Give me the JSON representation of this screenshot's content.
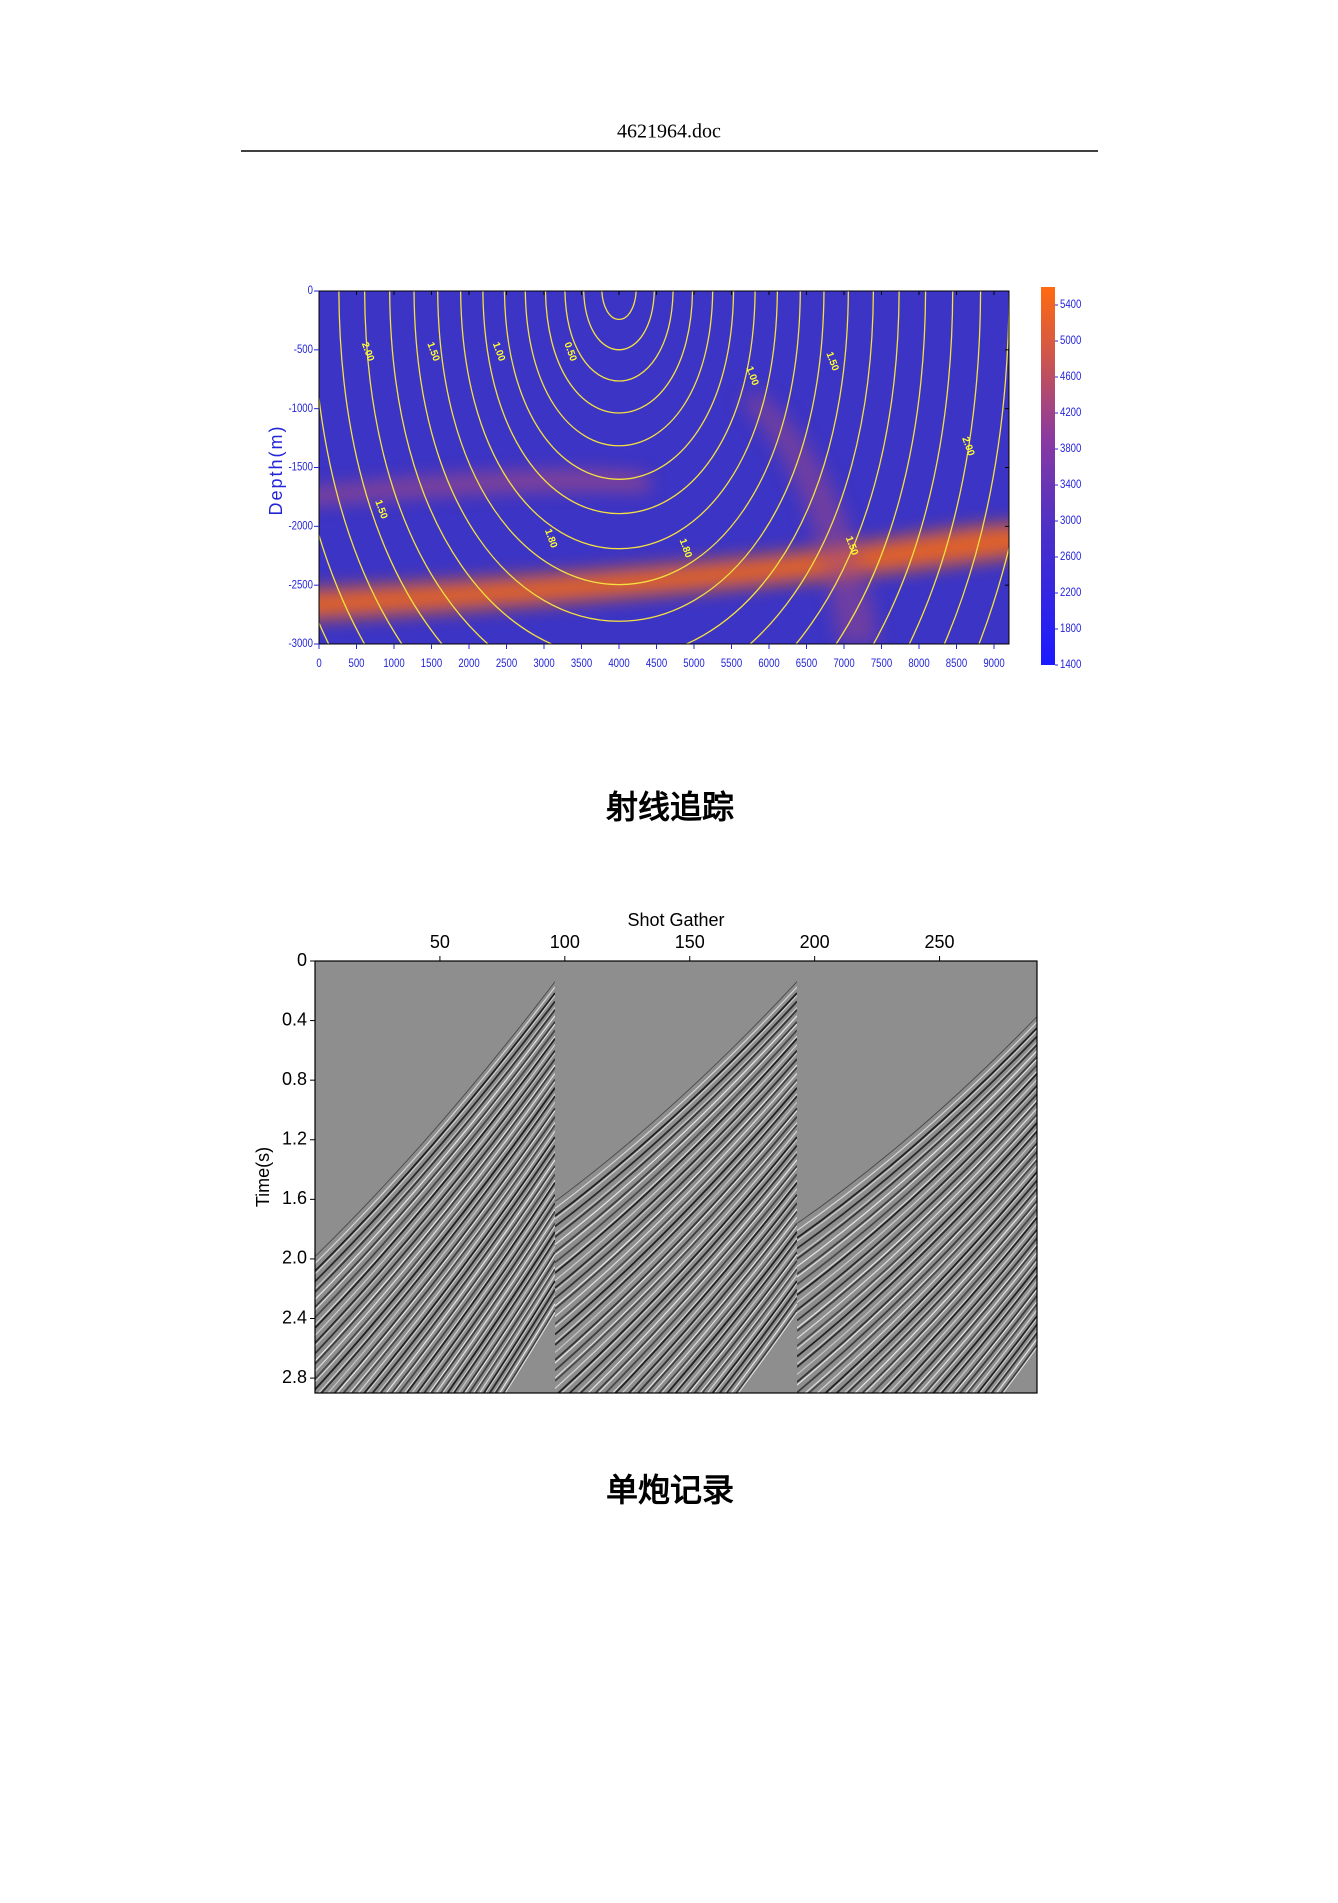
{
  "header": {
    "title": "4621964.doc"
  },
  "chart_data": [
    {
      "type": "contour",
      "y_label": "Depth(m)",
      "xlim": [
        0,
        9200
      ],
      "xticks": [
        0,
        500,
        1000,
        1500,
        2000,
        2500,
        3000,
        3500,
        4000,
        4500,
        5000,
        5500,
        6000,
        6500,
        7000,
        7500,
        8000,
        8500,
        9000
      ],
      "ylim": [
        -3000,
        0
      ],
      "yticks": [
        0,
        -500,
        -1000,
        -1500,
        -2000,
        -2500,
        -3000
      ],
      "colorbar": {
        "lim": [
          1400,
          5600
        ],
        "ticks": [
          1400,
          1800,
          2200,
          2600,
          3000,
          3400,
          3800,
          4200,
          4600,
          5000,
          5400
        ]
      },
      "contour_labels": [
        "2.00",
        "1.50",
        "1.00",
        "0.50",
        "1.00",
        "1.50",
        "2.00",
        "1.50",
        "1.80",
        "1.80",
        "1.50"
      ]
    },
    {
      "type": "seismic",
      "title": "Shot Gather",
      "y_label": "Time(s)",
      "xlim": [
        0,
        289
      ],
      "xticks": [
        50,
        100,
        150,
        200,
        250
      ],
      "ylim": [
        0,
        2.9
      ],
      "yticks": [
        0,
        0.4,
        0.8,
        1.2,
        1.6,
        {
          "value": 2,
          "label": "2.0"
        },
        2.4,
        2.8
      ]
    }
  ],
  "captions": [
    "射线追踪",
    "单炮记录"
  ]
}
